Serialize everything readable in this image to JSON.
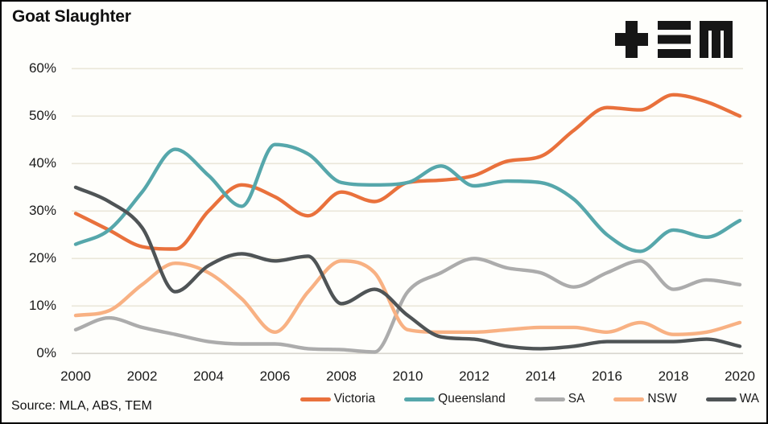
{
  "header": {
    "title": "Goat Slaughter"
  },
  "logo": {
    "name": "TEM",
    "glyphs": "+=M"
  },
  "footer": {
    "source": "Source: MLA, ABS, TEM"
  },
  "legend": {
    "items": [
      {
        "label": "Victoria",
        "color": "#E9713C"
      },
      {
        "label": "Queensland",
        "color": "#56A7AB"
      },
      {
        "label": "SA",
        "color": "#ACACAC"
      },
      {
        "label": "NSW",
        "color": "#F8B183"
      },
      {
        "label": "WA",
        "color": "#4F5456"
      }
    ]
  },
  "colors": {
    "grid": "#EAE7D9",
    "grid_zero": "#D8D6CE",
    "text": "#1A1A1A",
    "background": "#FEFEFB",
    "border": "#000000"
  },
  "chart_data": {
    "type": "line",
    "title": "Goat Slaughter",
    "x": [
      2000,
      2001,
      2002,
      2003,
      2004,
      2005,
      2006,
      2007,
      2008,
      2009,
      2010,
      2011,
      2012,
      2013,
      2014,
      2015,
      2016,
      2017,
      2018,
      2019,
      2020
    ],
    "series": [
      {
        "name": "Victoria",
        "color": "#E9713C",
        "values": [
          29.5,
          26,
          22.5,
          22,
          30,
          35.5,
          33,
          29,
          34,
          32,
          36,
          36.5,
          37.5,
          40.5,
          41.5,
          47,
          51.8,
          51.3,
          54.5,
          53,
          50
        ]
      },
      {
        "name": "Queensland",
        "color": "#56A7AB",
        "values": [
          23,
          26,
          34,
          43,
          37.5,
          31,
          44,
          42,
          36,
          35.5,
          36,
          39.5,
          35.3,
          36.3,
          36,
          32.5,
          25,
          21.5,
          26,
          24.5,
          28
        ]
      },
      {
        "name": "SA",
        "color": "#ACACAC",
        "values": [
          5,
          7.5,
          5.5,
          4,
          2.5,
          2,
          2,
          1,
          0.8,
          0.3,
          13,
          17,
          20,
          18,
          17,
          14,
          17,
          19.5,
          13.5,
          15.5,
          14.5
        ]
      },
      {
        "name": "NSW",
        "color": "#F8B183",
        "values": [
          8,
          9,
          14.5,
          19,
          17,
          11.5,
          4.5,
          13,
          19.5,
          17,
          5,
          4.5,
          4.5,
          5,
          5.5,
          5.5,
          4.5,
          6.5,
          4,
          4.5,
          6.5
        ]
      },
      {
        "name": "WA",
        "color": "#4F5456",
        "values": [
          35,
          32,
          26.5,
          13,
          18.5,
          21,
          19.5,
          20.5,
          10.5,
          13.5,
          8,
          3.5,
          3,
          1.5,
          1,
          1.5,
          2.5,
          2.5,
          2.5,
          3,
          1.5
        ]
      }
    ],
    "ylim": [
      0,
      60
    ],
    "yticks": [
      60,
      50,
      40,
      30,
      20,
      10,
      0
    ],
    "ytick_suffix": "%",
    "xticks": [
      2000,
      2002,
      2004,
      2006,
      2008,
      2010,
      2012,
      2014,
      2016,
      2018,
      2020
    ],
    "grid": "horizontal",
    "legend_position": "bottom"
  }
}
